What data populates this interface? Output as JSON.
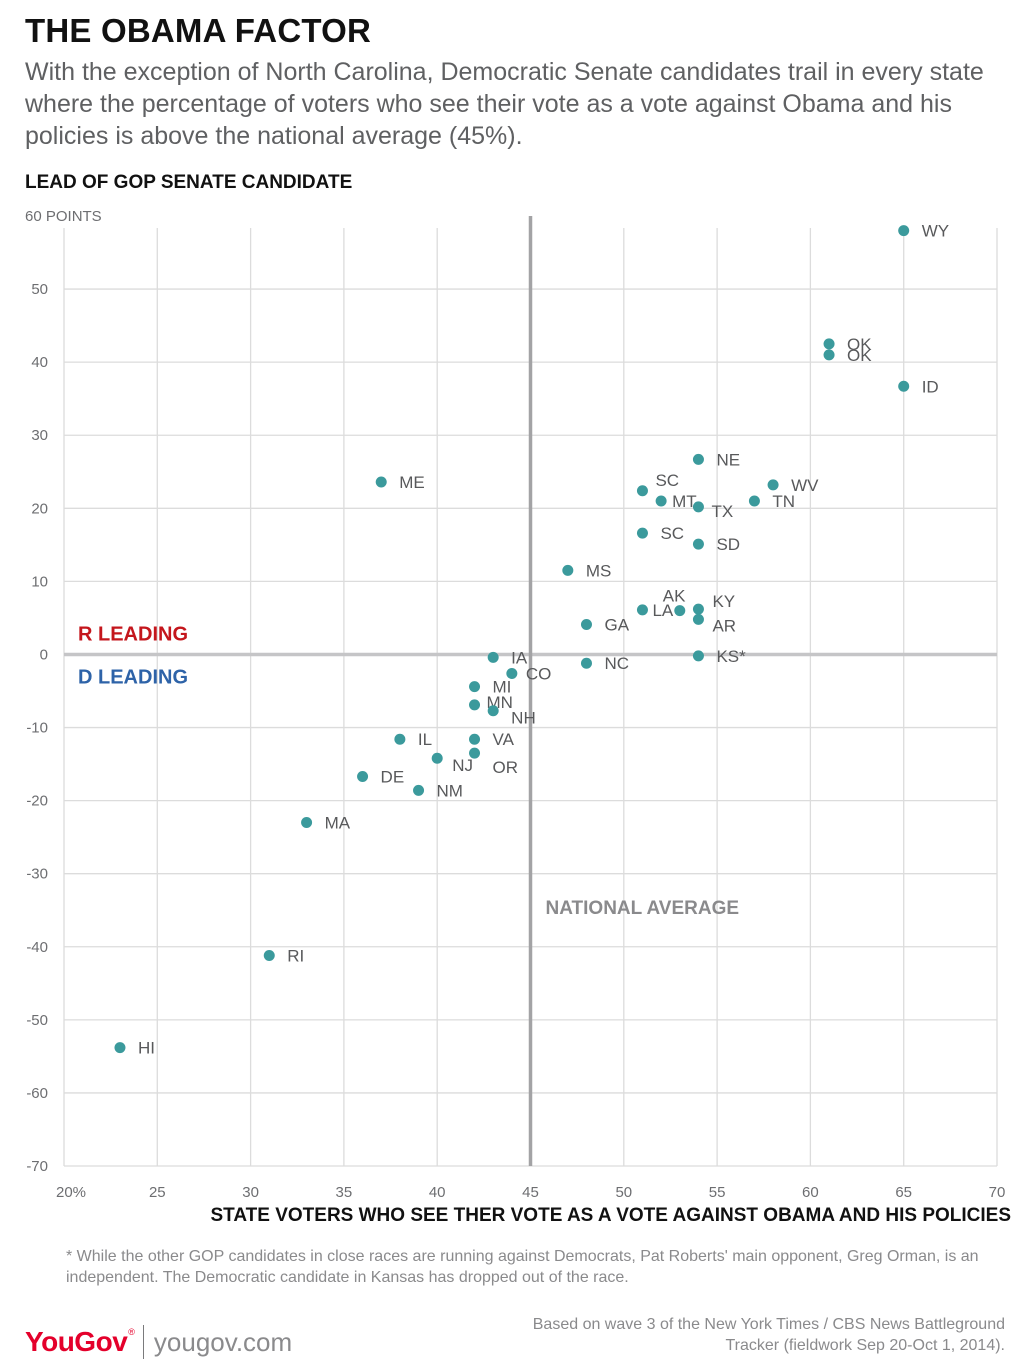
{
  "title": "THE OBAMA FACTOR",
  "subtitle": "With the exception of North Carolina, Democratic Senate candidates trail in every state where the percentage of voters who see their vote as a vote against Obama and his policies is above the national average (45%).",
  "footnote": "* While the other GOP candidates in close races are running against Democrats, Pat Roberts' main opponent, Greg Orman,  is an independent. The Democratic candidate in Kansas has dropped out of the race.",
  "logo": {
    "brand": "YouGov",
    "url": "yougov.com"
  },
  "source": "Based on wave 3 of the New York Times / CBS News Battleground Tracker (fieldwork Sep 20-Oct 1, 2014).",
  "colors": {
    "point": "#3b9a9c",
    "r_leading": "#c4161c",
    "d_leading": "#2e63a8",
    "grid": "#dcdcdc",
    "reference_line": "#a3a3a5",
    "axis_text": "#6d6e71"
  },
  "chart_data": {
    "type": "scatter",
    "title": "",
    "xlabel": "STATE VOTERS WHO SEE THER VOTE AS A VOTE AGAINST OBAMA AND HIS POLICIES",
    "ylabel": "LEAD OF GOP SENATE CANDIDATE",
    "xlim": [
      20,
      70
    ],
    "ylim": [
      -70,
      60
    ],
    "x_ticks": [
      20,
      25,
      30,
      35,
      40,
      45,
      50,
      55,
      60,
      65,
      70
    ],
    "x_tick_labels": [
      "20%",
      "25",
      "30",
      "35",
      "40",
      "45",
      "50",
      "55",
      "60",
      "65",
      "70"
    ],
    "y_ticks": [
      60,
      50,
      40,
      30,
      20,
      10,
      0,
      -10,
      -20,
      -30,
      -40,
      -50,
      -60,
      -70
    ],
    "y_tick_labels": [
      "60 POINTS",
      "50",
      "40",
      "30",
      "20",
      "10",
      "0",
      "-10",
      "-20",
      "-30",
      "-40",
      "-50",
      "-60",
      "-70"
    ],
    "grid": true,
    "reference_lines": {
      "x": 45,
      "y": 0
    },
    "annotations": {
      "r_leading": "R LEADING",
      "d_leading": "D LEADING",
      "national_average": "NATIONAL AVERAGE"
    },
    "points": [
      {
        "label": "WY",
        "x": 65,
        "y": 58
      },
      {
        "label": "OK",
        "x": 61,
        "y": 42.5
      },
      {
        "label": "OK",
        "x": 61,
        "y": 41
      },
      {
        "label": "ID",
        "x": 65,
        "y": 36.7
      },
      {
        "label": "NE",
        "x": 54,
        "y": 26.7
      },
      {
        "label": "ME",
        "x": 37,
        "y": 23.6
      },
      {
        "label": "WV",
        "x": 58,
        "y": 23.2
      },
      {
        "label": "SC",
        "x": 51,
        "y": 22.4
      },
      {
        "label": "MT",
        "x": 52,
        "y": 21
      },
      {
        "label": "TN",
        "x": 57,
        "y": 21
      },
      {
        "label": "TX",
        "x": 54,
        "y": 20.2
      },
      {
        "label": "SC",
        "x": 51,
        "y": 16.6
      },
      {
        "label": "SD",
        "x": 54,
        "y": 15.1
      },
      {
        "label": "MS",
        "x": 47,
        "y": 11.5
      },
      {
        "label": "LA",
        "x": 51,
        "y": 6.1
      },
      {
        "label": "AK",
        "x": 53,
        "y": 6
      },
      {
        "label": "KY",
        "x": 54,
        "y": 6.2
      },
      {
        "label": "AR",
        "x": 54,
        "y": 4.8
      },
      {
        "label": "GA",
        "x": 48,
        "y": 4.1
      },
      {
        "label": "IA",
        "x": 43,
        "y": -0.4
      },
      {
        "label": "KS*",
        "x": 54,
        "y": -0.2
      },
      {
        "label": "NC",
        "x": 48,
        "y": -1.2
      },
      {
        "label": "CO",
        "x": 44,
        "y": -2.6
      },
      {
        "label": "MI",
        "x": 42,
        "y": -4.4
      },
      {
        "label": "MN",
        "x": 42,
        "y": -6.9
      },
      {
        "label": "NH",
        "x": 43,
        "y": -7.7
      },
      {
        "label": "IL",
        "x": 38,
        "y": -11.6
      },
      {
        "label": "VA",
        "x": 42,
        "y": -11.6
      },
      {
        "label": "OR",
        "x": 42,
        "y": -13.5
      },
      {
        "label": "NJ",
        "x": 40,
        "y": -14.2
      },
      {
        "label": "DE",
        "x": 36,
        "y": -16.7
      },
      {
        "label": "NM",
        "x": 39,
        "y": -18.6
      },
      {
        "label": "MA",
        "x": 33,
        "y": -23
      },
      {
        "label": "RI",
        "x": 31,
        "y": -41.2
      },
      {
        "label": "HI",
        "x": 23,
        "y": -53.8
      }
    ]
  }
}
